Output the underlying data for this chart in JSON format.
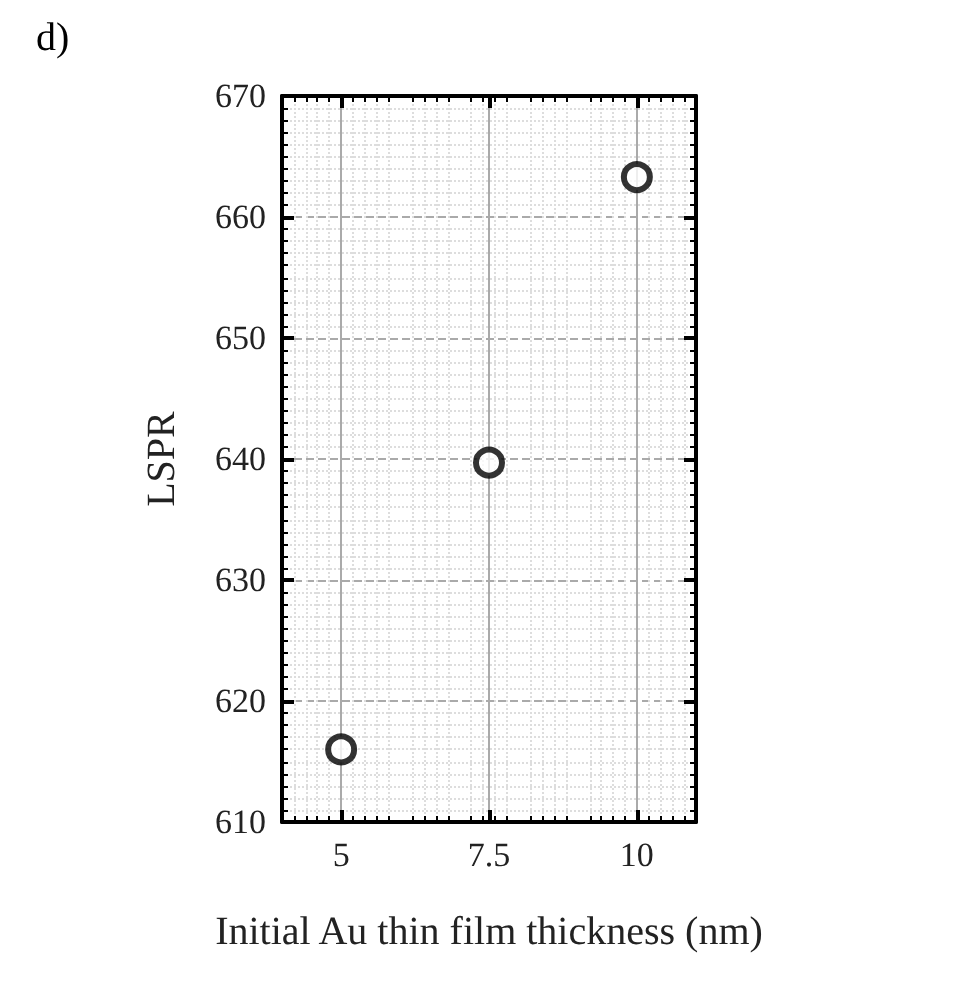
{
  "chart_data": {
    "type": "scatter",
    "xlabel": "Initial Au thin film thickness (nm)",
    "ylabel": "LSPR",
    "annotations": [
      "d)"
    ],
    "x": [
      5,
      7.5,
      10
    ],
    "series": [
      {
        "color": "#000000",
        "values": [
          616,
          639.7,
          663.3
        ]
      }
    ],
    "xlim": [
      4,
      11
    ],
    "xticks": [
      5,
      7.5,
      10
    ],
    "ylim": [
      610,
      670
    ],
    "yticks": [
      610,
      620,
      630,
      640,
      650,
      660,
      670
    ],
    "grid": true,
    "marker": "circle"
  }
}
